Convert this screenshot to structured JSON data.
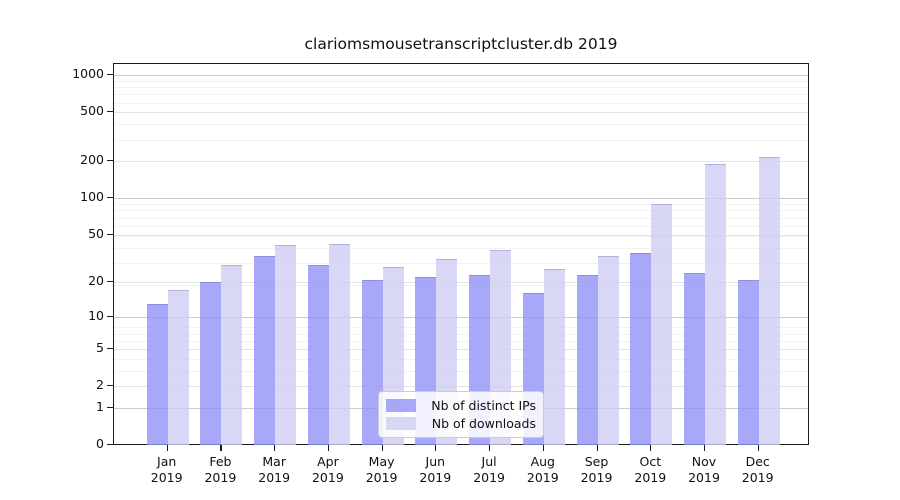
{
  "chart_data": {
    "type": "bar",
    "title": "clariomsmousetranscriptcluster.db 2019",
    "categories": [
      "Jan",
      "Feb",
      "Mar",
      "Apr",
      "May",
      "Jun",
      "Jul",
      "Aug",
      "Sep",
      "Oct",
      "Nov",
      "Dec"
    ],
    "x_year": "2019",
    "series": [
      {
        "name": "Nb of distinct IPs",
        "color": "rgba(146,146,246,0.8)",
        "color_hex": "#a8a8f6",
        "values": [
          13,
          20,
          33,
          28,
          21,
          22,
          23,
          16,
          23,
          35,
          24,
          21
        ]
      },
      {
        "name": "Nb of downloads",
        "color": "rgba(206,206,244,0.8)",
        "color_hex": "#d8d8f6",
        "values": [
          17,
          28,
          41,
          42,
          27,
          31,
          37,
          26,
          33,
          90,
          190,
          215
        ]
      }
    ],
    "y_ticks": [
      0,
      1,
      2,
      5,
      10,
      20,
      50,
      100,
      200,
      500,
      1000
    ],
    "y_major_ticks": [
      1,
      10,
      100,
      1000
    ],
    "y_scale": "log1p",
    "ylim": [
      0,
      1230
    ],
    "xlabel": "",
    "ylabel": "",
    "grid": true,
    "legend_position": "lower-center"
  }
}
